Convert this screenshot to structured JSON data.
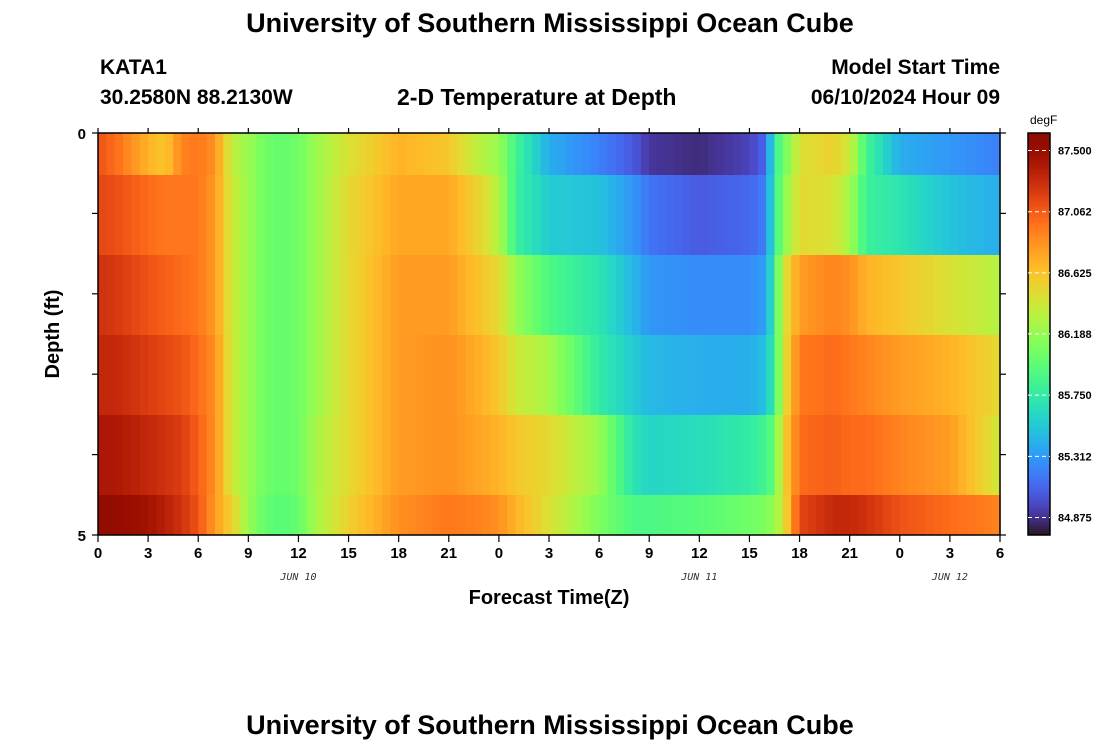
{
  "page": {
    "title_top": "University of Southern Mississippi Ocean Cube",
    "station": "KATA1",
    "coords": "30.2580N  88.2130W",
    "subtitle": "2-D Temperature at Depth",
    "model_start_label": "Model Start Time",
    "model_start_value": "06/10/2024 Hour 09",
    "title_bottom": "University of Southern Mississippi Ocean Cube"
  },
  "chart_data": {
    "type": "heatmap",
    "title": "2-D Temperature at Depth",
    "xlabel": "Forecast Time(Z)",
    "ylabel": "Depth (ft)",
    "colorbar_unit": "degF",
    "x_start_hour": 0,
    "x_end_hour": 54,
    "x_ticks": [
      0,
      3,
      6,
      9,
      12,
      15,
      18,
      21,
      24,
      27,
      30,
      33,
      36,
      39,
      42,
      45,
      48,
      51,
      54
    ],
    "x_tick_labels": [
      "0",
      "3",
      "6",
      "9",
      "12",
      "15",
      "18",
      "21",
      "0",
      "3",
      "6",
      "9",
      "12",
      "15",
      "18",
      "21",
      "0",
      "3",
      "6"
    ],
    "date_labels": [
      {
        "hour": 12,
        "text": "JUN 10"
      },
      {
        "hour": 36,
        "text": "JUN 11"
      },
      {
        "hour": 51,
        "text": "JUN 12"
      }
    ],
    "y_range": [
      0,
      5
    ],
    "y_tick_labels": [
      "0",
      "5"
    ],
    "depth_bands": [
      0,
      1,
      2,
      3,
      4,
      5
    ],
    "color_range": [
      84.75,
      87.625
    ],
    "colorbar_ticks": [
      "87.500",
      "87.062",
      "86.625",
      "86.188",
      "85.750",
      "85.312",
      "84.875"
    ],
    "colorbar_tick_values": [
      87.5,
      87.062,
      86.625,
      86.188,
      85.75,
      85.312,
      84.875
    ],
    "temperature_keypoints": [
      {
        "hour": 0,
        "values": [
          87.1,
          87.15,
          87.25,
          87.3,
          87.4,
          87.55
        ]
      },
      {
        "hour": 1,
        "values": [
          87.0,
          87.12,
          87.22,
          87.3,
          87.4,
          87.55
        ]
      },
      {
        "hour": 3,
        "values": [
          86.7,
          87.0,
          87.1,
          87.2,
          87.3,
          87.45
        ]
      },
      {
        "hour": 4,
        "values": [
          86.6,
          86.95,
          87.05,
          87.15,
          87.25,
          87.35
        ]
      },
      {
        "hour": 5,
        "values": [
          86.9,
          86.95,
          87.0,
          87.1,
          87.2,
          87.25
        ]
      },
      {
        "hour": 6,
        "values": [
          86.95,
          86.95,
          86.95,
          87.0,
          87.05,
          87.1
        ]
      },
      {
        "hour": 7,
        "values": [
          86.85,
          86.8,
          86.8,
          86.85,
          86.85,
          86.8
        ]
      },
      {
        "hour": 8,
        "values": [
          86.35,
          86.4,
          86.4,
          86.4,
          86.4,
          86.55
        ]
      },
      {
        "hour": 9,
        "values": [
          86.2,
          86.2,
          86.2,
          86.2,
          86.2,
          86.2
        ]
      },
      {
        "hour": 10,
        "values": [
          86.05,
          86.05,
          86.05,
          86.05,
          86.05,
          86.0
        ]
      },
      {
        "hour": 11,
        "values": [
          86.0,
          86.0,
          86.0,
          86.0,
          86.0,
          85.95
        ]
      },
      {
        "hour": 12,
        "values": [
          86.05,
          86.05,
          86.05,
          86.05,
          86.05,
          86.0
        ]
      },
      {
        "hour": 13,
        "values": [
          86.2,
          86.2,
          86.2,
          86.2,
          86.25,
          86.25
        ]
      },
      {
        "hour": 15,
        "values": [
          86.45,
          86.5,
          86.5,
          86.5,
          86.5,
          86.55
        ]
      },
      {
        "hour": 18,
        "values": [
          86.7,
          86.75,
          86.8,
          86.8,
          86.8,
          86.85
        ]
      },
      {
        "hour": 21,
        "values": [
          86.6,
          86.75,
          86.8,
          86.85,
          86.85,
          86.95
        ]
      },
      {
        "hour": 23,
        "values": [
          86.3,
          86.5,
          86.6,
          86.7,
          86.75,
          86.9
        ]
      },
      {
        "hour": 24,
        "values": [
          86.2,
          86.3,
          86.5,
          86.6,
          86.7,
          86.85
        ]
      },
      {
        "hour": 25,
        "values": [
          85.85,
          85.8,
          86.2,
          86.4,
          86.6,
          86.7
        ]
      },
      {
        "hour": 27,
        "values": [
          85.4,
          85.55,
          85.9,
          86.25,
          86.5,
          86.45
        ]
      },
      {
        "hour": 30,
        "values": [
          85.2,
          85.5,
          85.7,
          85.75,
          86.2,
          86.1
        ]
      },
      {
        "hour": 32,
        "values": [
          85.05,
          85.3,
          85.45,
          85.55,
          85.7,
          85.9
        ]
      },
      {
        "hour": 33,
        "values": [
          84.9,
          85.15,
          85.3,
          85.45,
          85.6,
          85.9
        ]
      },
      {
        "hour": 36,
        "values": [
          84.85,
          85.05,
          85.25,
          85.4,
          85.65,
          85.95
        ]
      },
      {
        "hour": 39,
        "values": [
          84.95,
          85.1,
          85.25,
          85.4,
          85.75,
          86.05
        ]
      },
      {
        "hour": 40,
        "values": [
          85.1,
          85.2,
          85.35,
          85.5,
          85.85,
          86.1
        ]
      },
      {
        "hour": 40.5,
        "values": [
          85.8,
          85.8,
          85.8,
          85.8,
          86.0,
          86.2
        ]
      },
      {
        "hour": 41,
        "values": [
          86.0,
          86.1,
          86.4,
          86.4,
          86.5,
          86.4
        ]
      },
      {
        "hour": 42,
        "values": [
          86.45,
          86.5,
          86.8,
          86.95,
          87.0,
          87.15
        ]
      },
      {
        "hour": 44,
        "values": [
          86.55,
          86.45,
          86.9,
          87.0,
          87.05,
          87.3
        ]
      },
      {
        "hour": 45,
        "values": [
          86.4,
          86.25,
          86.85,
          86.95,
          87.0,
          87.3
        ]
      },
      {
        "hour": 46,
        "values": [
          85.85,
          85.8,
          86.7,
          86.9,
          87.0,
          87.25
        ]
      },
      {
        "hour": 48,
        "values": [
          85.4,
          85.7,
          86.6,
          86.8,
          86.9,
          87.1
        ]
      },
      {
        "hour": 51,
        "values": [
          85.3,
          85.5,
          86.45,
          86.7,
          86.8,
          87.0
        ]
      },
      {
        "hour": 54,
        "values": [
          85.2,
          85.4,
          86.3,
          86.5,
          86.4,
          86.9
        ]
      }
    ]
  }
}
